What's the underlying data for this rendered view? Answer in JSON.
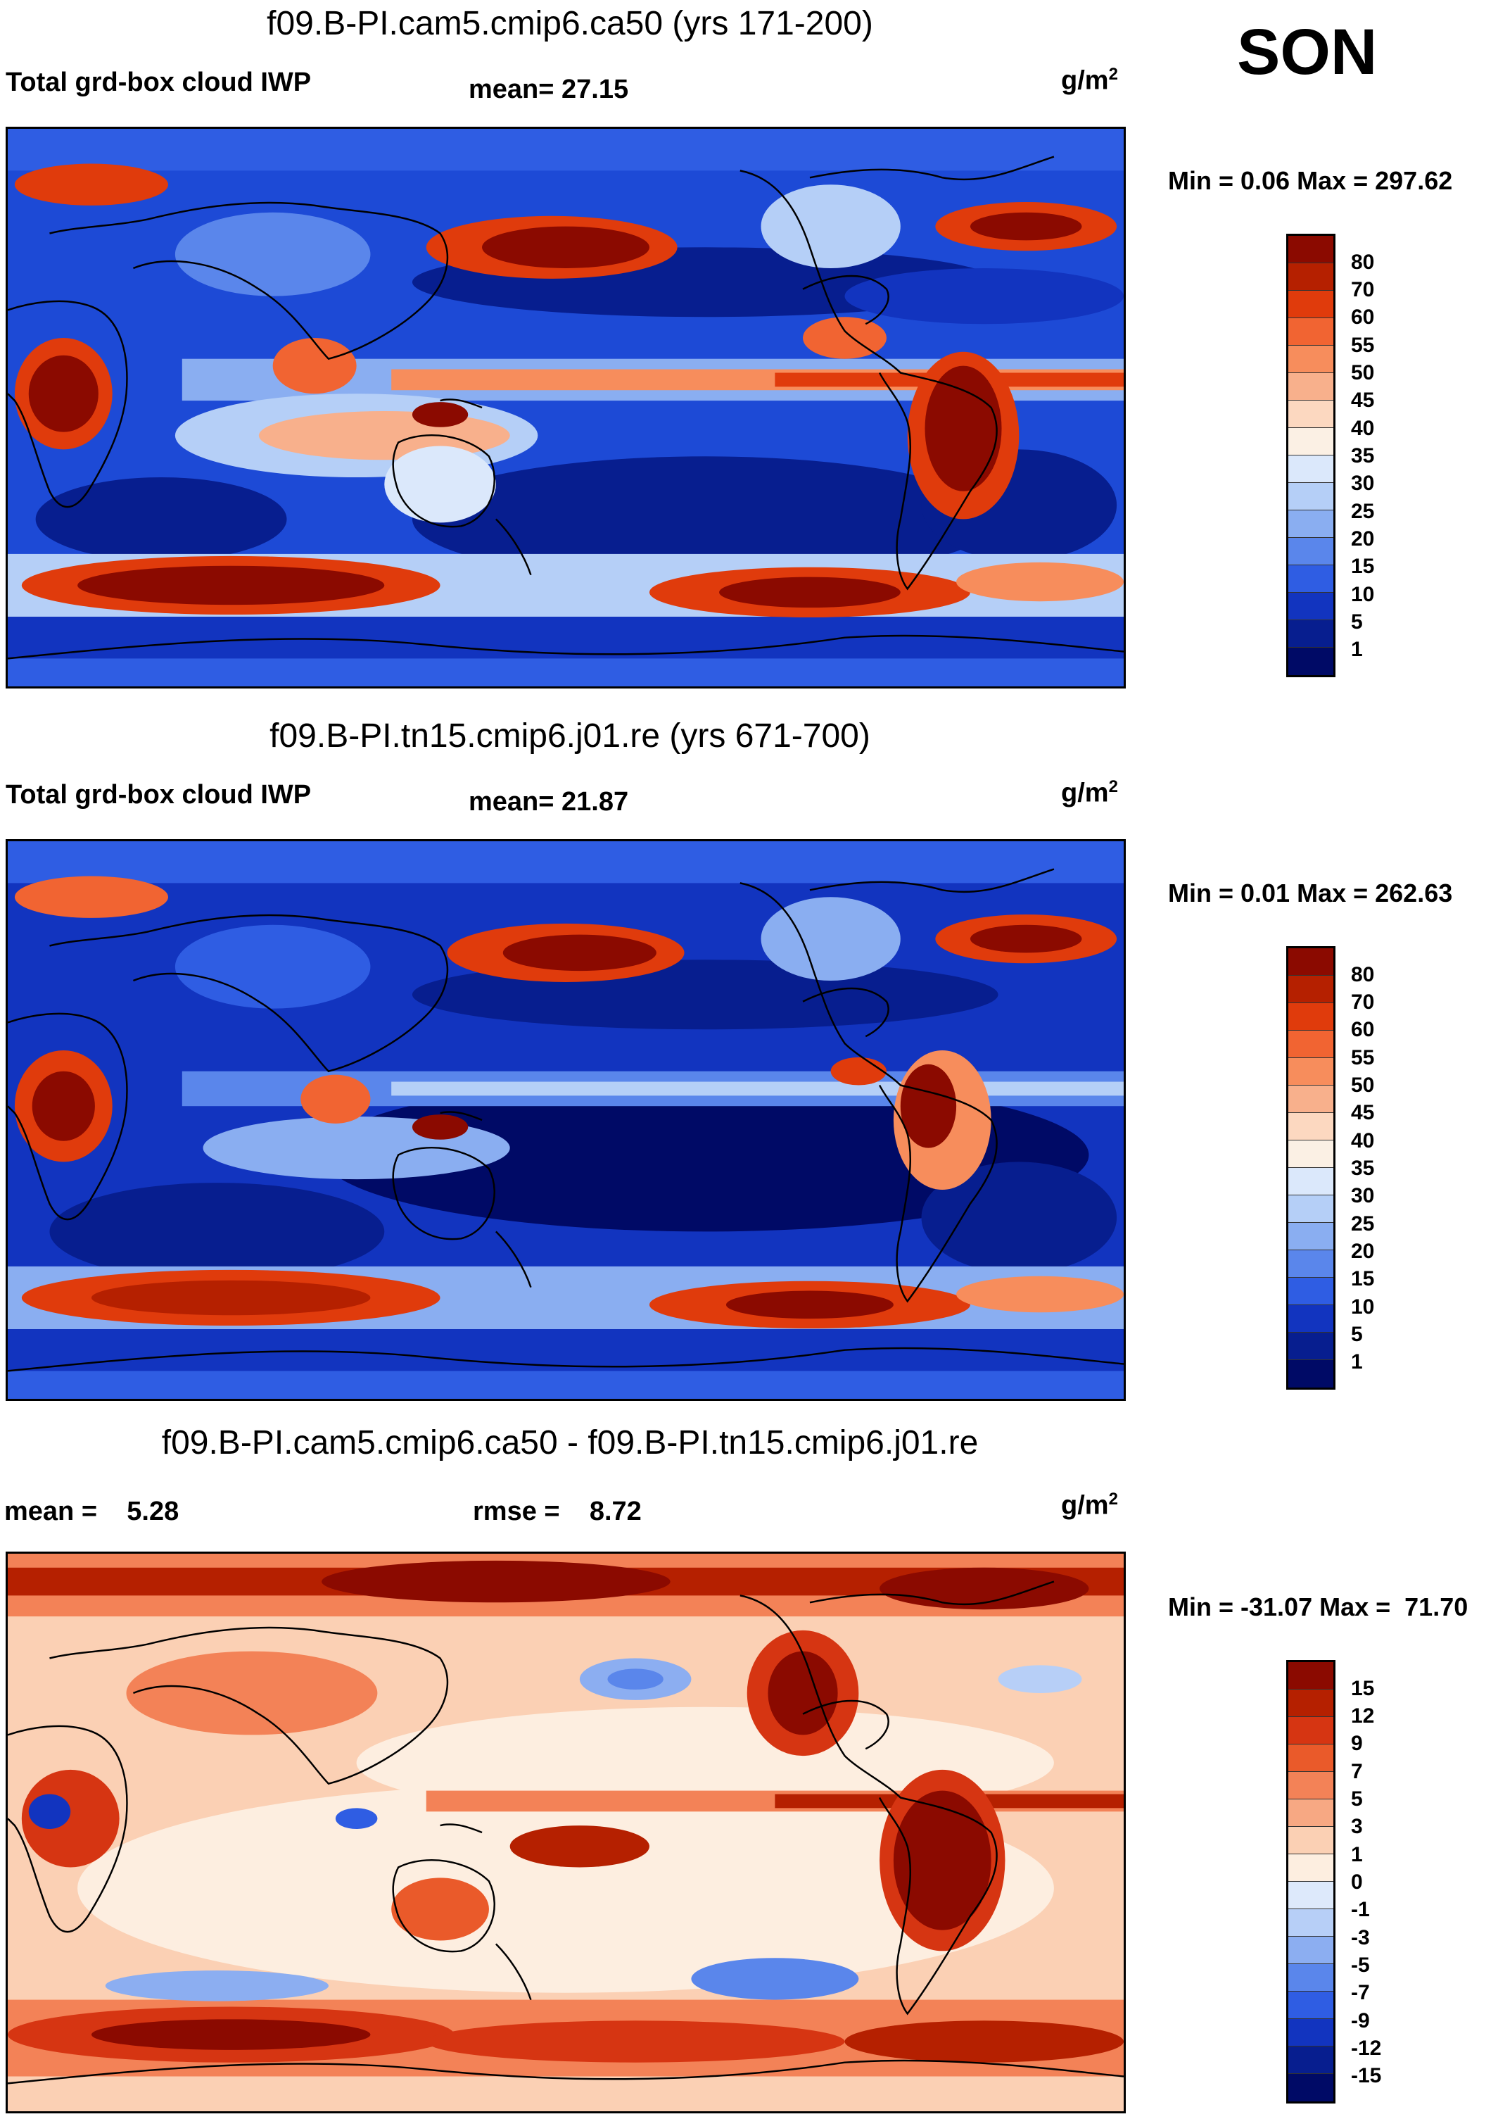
{
  "season": "SON",
  "panels": [
    {
      "title": "f09.B-PI.cam5.cmip6.ca50 (yrs 171-200)",
      "left_label": "Total grd-box cloud IWP",
      "center_label": "mean=  27.15",
      "units": "g/m",
      "units_sup": "2",
      "minmax": "Min =   0.06 Max = 297.62"
    },
    {
      "title": "f09.B-PI.tn15.cmip6.j01.re (yrs 671-700)",
      "left_label": "Total grd-box cloud IWP",
      "center_label": "mean=  21.87",
      "units": "g/m",
      "units_sup": "2",
      "minmax": "Min =   0.01 Max = 262.63"
    },
    {
      "title": "f09.B-PI.cam5.cmip6.ca50 - f09.B-PI.tn15.cmip6.j01.re",
      "left_label": "mean =    5.28",
      "center_label": "rmse =    8.72",
      "units": "g/m",
      "units_sup": "2",
      "minmax": "Min = -31.07 Max =  71.70"
    }
  ],
  "colorbars": {
    "abs": {
      "levels": [
        "80",
        "70",
        "60",
        "55",
        "50",
        "45",
        "40",
        "35",
        "30",
        "25",
        "20",
        "15",
        "10",
        "5",
        "1"
      ],
      "colors": [
        "#8b0a00",
        "#b52000",
        "#e03b0c",
        "#f16432",
        "#f78d5c",
        "#f8b08c",
        "#fcd8c0",
        "#fbf0e4",
        "#dbe8fb",
        "#b5cff7",
        "#8aaef1",
        "#5a86eb",
        "#2f5de3",
        "#1234bf",
        "#071e8f",
        "#000a66"
      ]
    },
    "diff": {
      "levels": [
        "15",
        "12",
        "9",
        "7",
        "5",
        "3",
        "1",
        "0",
        "-1",
        "-3",
        "-5",
        "-7",
        "-9",
        "-12",
        "-15"
      ],
      "colors": [
        "#8b0a00",
        "#b52000",
        "#d63512",
        "#ea5a2a",
        "#f38257",
        "#f7a883",
        "#fbd0b4",
        "#fdeee0",
        "#dde9fb",
        "#b7cff7",
        "#8caef1",
        "#5a86eb",
        "#2f5de3",
        "#1234bf",
        "#071e8f",
        "#000a66"
      ]
    }
  }
}
